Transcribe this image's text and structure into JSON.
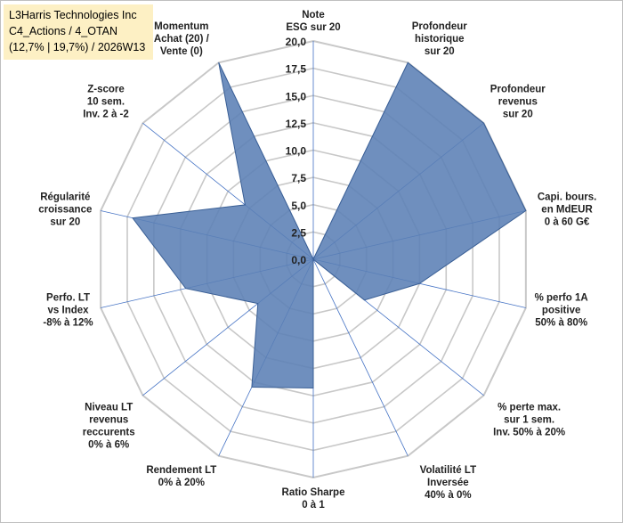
{
  "header": {
    "line1": "L3Harris Technologies Inc",
    "line2": "C4_Actions / 4_OTAN",
    "line3": "(12,7% | 19,7%) / 2026W13",
    "background": "#fdf0c4"
  },
  "chart_data": {
    "type": "radar",
    "title": "L3Harris Technologies Inc",
    "rmin": 0,
    "rmax": 20,
    "ticks": [
      {
        "value": 0,
        "label": "0,0"
      },
      {
        "value": 2.5,
        "label": "2,5"
      },
      {
        "value": 5,
        "label": "5,0"
      },
      {
        "value": 7.5,
        "label": "7,5"
      },
      {
        "value": 10,
        "label": "10,0"
      },
      {
        "value": 12.5,
        "label": "12,5"
      },
      {
        "value": 15,
        "label": "15,0"
      },
      {
        "value": 17.5,
        "label": "17,5"
      },
      {
        "value": 20,
        "label": "20,0"
      }
    ],
    "axes": [
      {
        "lines": [
          "Note",
          "ESG sur 20"
        ]
      },
      {
        "lines": [
          "Profondeur",
          "historique",
          "sur 20"
        ]
      },
      {
        "lines": [
          "Profondeur",
          "revenus",
          "sur 20"
        ]
      },
      {
        "lines": [
          "Capi. bours.",
          "en MdEUR",
          "0 à 60 G€"
        ]
      },
      {
        "lines": [
          "% perfo 1A",
          "positive",
          "50% à 80%"
        ]
      },
      {
        "lines": [
          "% perte max.",
          "sur 1 sem.",
          "Inv. 50% à 20%"
        ]
      },
      {
        "lines": [
          "Volatilité LT",
          "Inversée",
          "40% à 0%"
        ]
      },
      {
        "lines": [
          "Ratio Sharpe",
          "0 à 1"
        ]
      },
      {
        "lines": [
          "Rendement LT",
          "0% à 20%"
        ]
      },
      {
        "lines": [
          "Niveau LT",
          "revenus",
          "reccurents",
          "0% à 6%"
        ]
      },
      {
        "lines": [
          "Perfo. LT",
          "vs Index",
          "-8% à 12%"
        ]
      },
      {
        "lines": [
          "Régularité",
          "croissance",
          "sur 20"
        ]
      },
      {
        "lines": [
          "Z-score",
          "10 sem.",
          "Inv. 2 à -2"
        ]
      },
      {
        "lines": [
          "Momentum",
          "Achat (20) /",
          "Vente (0)"
        ]
      }
    ],
    "series": [
      {
        "name": "L3Harris Technologies Inc",
        "color": "#5b7fb5",
        "values": [
          0,
          20,
          20,
          20,
          10,
          6,
          0,
          11.8,
          13,
          6.5,
          12,
          17,
          8,
          20
        ]
      }
    ],
    "colors": {
      "grid": "#c8c8c8",
      "spoke": "#4472c4",
      "fill": "#5b7fb5",
      "stroke": "#3a5f95"
    }
  }
}
